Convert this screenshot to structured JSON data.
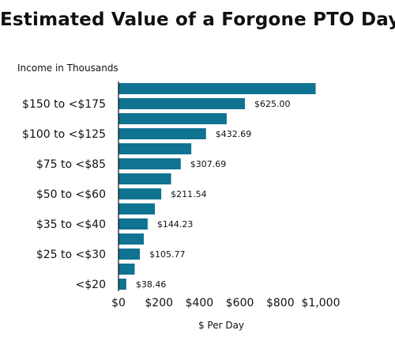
{
  "chart_data": {
    "type": "bar",
    "orientation": "horizontal",
    "title": "Estimated Value of a Forgone PTO Day",
    "ylabel": "Income in Thousands",
    "xlabel": "$ Per Day",
    "xlim": [
      0,
      1000
    ],
    "xticks": [
      {
        "value": 0,
        "label": "$0"
      },
      {
        "value": 200,
        "label": "$200"
      },
      {
        "value": 400,
        "label": "$400"
      },
      {
        "value": 600,
        "label": "$600"
      },
      {
        "value": 800,
        "label": "$800"
      },
      {
        "value": 1000,
        "label": "$1,000"
      }
    ],
    "bar_color": "#0f7391",
    "grid": false,
    "legend": "none",
    "bars": [
      {
        "category": "",
        "value": 975.0,
        "label": ""
      },
      {
        "category": "$150 to <$175",
        "value": 625.0,
        "label": "$625.00"
      },
      {
        "category": "",
        "value": 535.0,
        "label": ""
      },
      {
        "category": "$100 to <$125",
        "value": 432.69,
        "label": "$432.69"
      },
      {
        "category": "",
        "value": 360.0,
        "label": ""
      },
      {
        "category": "$75 to <$85",
        "value": 307.69,
        "label": "$307.69"
      },
      {
        "category": "",
        "value": 260.0,
        "label": ""
      },
      {
        "category": "$50 to <$60",
        "value": 211.54,
        "label": "$211.54"
      },
      {
        "category": "",
        "value": 180.0,
        "label": ""
      },
      {
        "category": "$35 to <$40",
        "value": 144.23,
        "label": "$144.23"
      },
      {
        "category": "",
        "value": 125.0,
        "label": ""
      },
      {
        "category": "$25 to <$30",
        "value": 105.77,
        "label": "$105.77"
      },
      {
        "category": "",
        "value": 80.0,
        "label": ""
      },
      {
        "category": "<$20",
        "value": 38.46,
        "label": "$38.46"
      }
    ]
  }
}
